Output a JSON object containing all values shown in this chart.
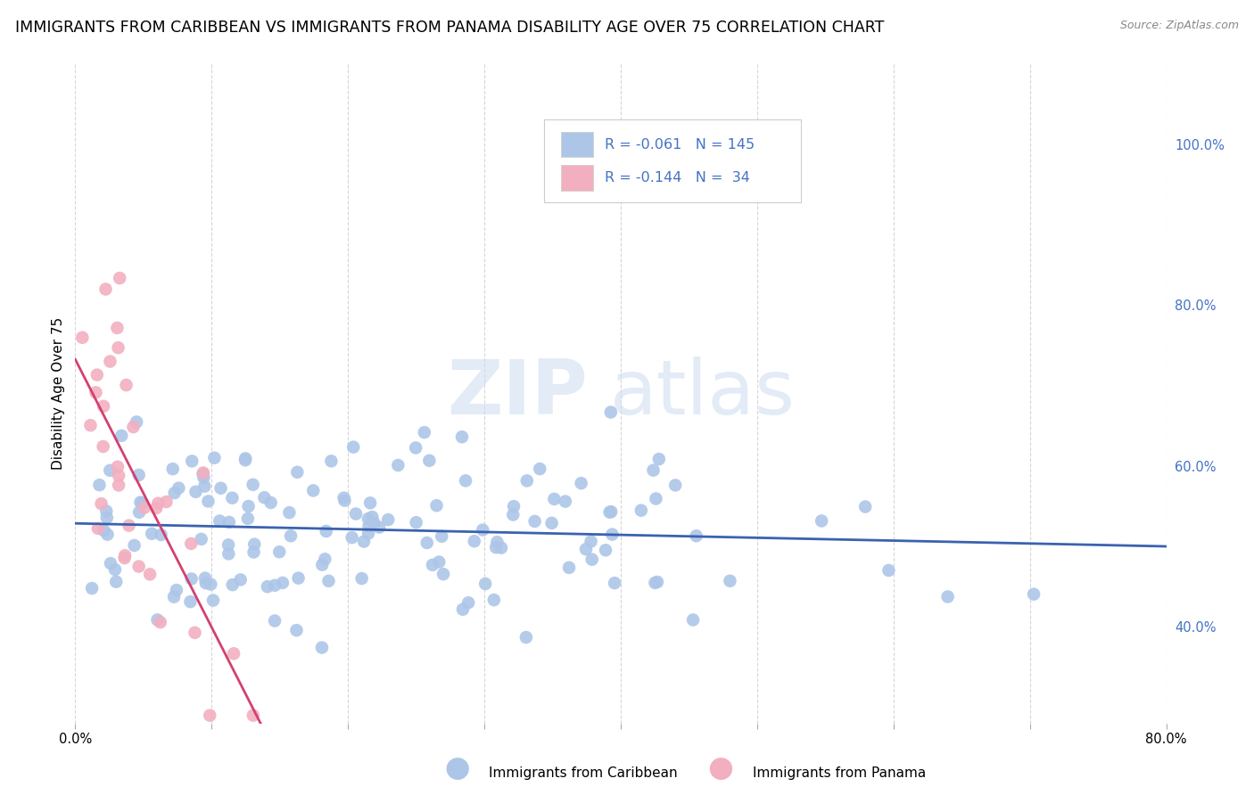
{
  "title": "IMMIGRANTS FROM CARIBBEAN VS IMMIGRANTS FROM PANAMA DISABILITY AGE OVER 75 CORRELATION CHART",
  "source": "Source: ZipAtlas.com",
  "ylabel": "Disability Age Over 75",
  "legend_label1": "Immigrants from Caribbean",
  "legend_label2": "Immigrants from Panama",
  "R1": -0.061,
  "N1": 145,
  "R2": -0.144,
  "N2": 34,
  "color1": "#adc6e8",
  "color2": "#f2afc0",
  "line_color1": "#3a62b0",
  "line_color2": "#d44070",
  "text_color_blue": "#4472c4",
  "xlim": [
    0.0,
    0.8
  ],
  "ylim": [
    0.28,
    1.1
  ],
  "yticks_right": [
    1.0,
    0.8,
    0.6,
    0.4
  ],
  "ytick_labels_right": [
    "100.0%",
    "80.0%",
    "60.0%",
    "40.0%"
  ],
  "watermark": "ZIPatlas",
  "background_color": "#ffffff",
  "grid_color": "#cccccc",
  "title_fontsize": 12.5,
  "axis_label_fontsize": 11,
  "tick_fontsize": 10.5
}
